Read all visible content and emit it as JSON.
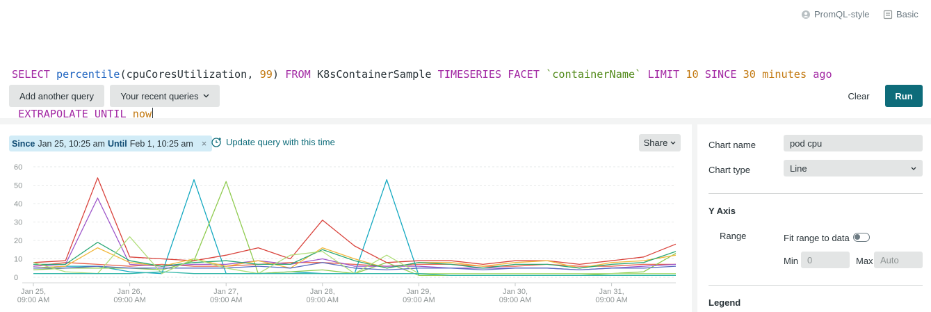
{
  "header": {
    "mode_promql": "PromQL-style",
    "mode_basic": "Basic"
  },
  "query": {
    "line1": [
      {
        "t": "SELECT ",
        "c": "kw"
      },
      {
        "t": "percentile",
        "c": "fn"
      },
      {
        "t": "(cpuCoresUtilization, ",
        "c": "plain"
      },
      {
        "t": "99",
        "c": "num"
      },
      {
        "t": ") ",
        "c": "plain"
      },
      {
        "t": "FROM",
        "c": "kw"
      },
      {
        "t": " K8sContainerSample ",
        "c": "plain"
      },
      {
        "t": "TIMESERIES FACET ",
        "c": "kw"
      },
      {
        "t": "`containerName`",
        "c": "str"
      },
      {
        "t": " ",
        "c": "plain"
      },
      {
        "t": "LIMIT ",
        "c": "kw"
      },
      {
        "t": "10",
        "c": "num"
      },
      {
        "t": " ",
        "c": "plain"
      },
      {
        "t": "SINCE ",
        "c": "kw"
      },
      {
        "t": "30",
        "c": "num"
      },
      {
        "t": " ",
        "c": "plain"
      },
      {
        "t": "minutes",
        "c": "tw"
      },
      {
        "t": " ",
        "c": "plain"
      },
      {
        "t": "ago",
        "c": "kw"
      }
    ],
    "line2": [
      {
        "t": " EXTRAPOLATE UNTIL ",
        "c": "kw"
      },
      {
        "t": "now",
        "c": "tw"
      }
    ]
  },
  "actions": {
    "add_query": "Add another query",
    "recent_queries": "Your recent queries",
    "clear": "Clear",
    "run": "Run"
  },
  "time_range": {
    "since_label": "Since",
    "since_value": "Jan 25, 10:25 am",
    "until_label": "Until",
    "until_value": "Feb 1, 10:25 am",
    "close": "×"
  },
  "update_query_label": "Update query with this time",
  "share_label": "Share",
  "settings": {
    "chart_name_label": "Chart name",
    "chart_name_value": "pod cpu",
    "chart_type_label": "Chart type",
    "chart_type_value": "Line",
    "y_axis_heading": "Y Axis",
    "range_label": "Range",
    "fit_range_label": "Fit range to data",
    "fit_range_on": false,
    "min_label": "Min",
    "min_placeholder": "0",
    "max_label": "Max",
    "max_placeholder": "Auto",
    "legend_heading": "Legend"
  },
  "chart_data": {
    "type": "line",
    "y_ticks": [
      0,
      10,
      20,
      30,
      40,
      50,
      60
    ],
    "ylim": [
      0,
      60
    ],
    "grid": true,
    "x_tick_labels": [
      [
        "Jan 25,",
        "09:00 AM"
      ],
      [
        "Jan 26,",
        "09:00 AM"
      ],
      [
        "Jan 27,",
        "09:00 AM"
      ],
      [
        "Jan 28,",
        "09:00 AM"
      ],
      [
        "Jan 29,",
        "09:00 AM"
      ],
      [
        "Jan 30,",
        "09:00 AM"
      ],
      [
        "Jan 31,",
        "09:00 AM"
      ]
    ],
    "x": [
      "Jan 25, 09:00 AM",
      "Jan 25, 05:00 PM",
      "Jan 26, 01:00 AM",
      "Jan 26, 09:00 AM",
      "Jan 26, 05:00 PM",
      "Jan 27, 01:00 AM",
      "Jan 27, 09:00 AM",
      "Jan 27, 05:00 PM",
      "Jan 28, 01:00 AM",
      "Jan 28, 09:00 AM",
      "Jan 28, 05:00 PM",
      "Jan 29, 01:00 AM",
      "Jan 29, 09:00 AM",
      "Jan 29, 05:00 PM",
      "Jan 30, 01:00 AM",
      "Jan 30, 09:00 AM",
      "Jan 30, 05:00 PM",
      "Jan 31, 01:00 AM",
      "Jan 31, 09:00 AM",
      "Jan 31, 05:00 PM",
      "Feb 1, 01:00 AM"
    ],
    "series": [
      {
        "color": "#e8614a",
        "values": [
          6,
          8,
          7,
          6,
          7,
          6,
          6,
          7,
          8,
          8,
          7,
          6,
          7,
          7,
          6,
          6,
          7,
          6,
          6,
          7,
          7
        ]
      },
      {
        "color": "#12a8c0",
        "values": [
          5,
          6,
          6,
          3,
          2,
          53,
          2,
          2,
          3,
          2,
          2,
          53,
          1,
          1,
          1,
          1,
          1,
          1,
          1,
          1,
          1
        ]
      },
      {
        "color": "#8fcb4f",
        "values": [
          4,
          5,
          5,
          5,
          4,
          9,
          52,
          2,
          3,
          4,
          2,
          8,
          1,
          1,
          1,
          1,
          1,
          1,
          2,
          3,
          13
        ]
      },
      {
        "color": "#9d55c9",
        "values": [
          6,
          7,
          43,
          7,
          6,
          7,
          7,
          9,
          7,
          10,
          6,
          6,
          6,
          5,
          5,
          5,
          5,
          4,
          5,
          6,
          7
        ]
      },
      {
        "color": "#d9423b",
        "values": [
          8,
          9,
          54,
          11,
          10,
          9,
          12,
          16,
          10,
          31,
          17,
          8,
          9,
          9,
          7,
          9,
          9,
          7,
          9,
          11,
          18
        ]
      },
      {
        "color": "#f2b83c",
        "values": [
          5,
          6,
          16,
          8,
          6,
          10,
          6,
          9,
          5,
          16,
          10,
          5,
          8,
          8,
          6,
          8,
          9,
          5,
          8,
          9,
          12
        ]
      },
      {
        "color": "#2aa774",
        "values": [
          7,
          7,
          19,
          9,
          6,
          8,
          9,
          7,
          7,
          15,
          9,
          5,
          8,
          7,
          5,
          7,
          7,
          5,
          7,
          8,
          14
        ]
      },
      {
        "color": "#5a6cc2",
        "values": [
          5,
          5,
          6,
          5,
          5,
          5,
          5,
          6,
          5,
          8,
          5,
          4,
          5,
          5,
          4,
          5,
          5,
          4,
          5,
          5,
          6
        ]
      },
      {
        "color": "#b0de7a",
        "values": [
          8,
          3,
          2,
          22,
          2,
          10,
          5,
          2,
          12,
          14,
          2,
          12,
          2,
          2,
          2,
          2,
          2,
          2,
          2,
          2,
          2
        ]
      },
      {
        "color": "#32b6a8",
        "values": [
          2,
          2,
          2,
          2,
          3,
          2,
          2,
          2,
          2,
          2,
          2,
          2,
          2,
          1,
          1,
          1,
          1,
          1,
          1,
          1,
          1
        ]
      }
    ]
  }
}
